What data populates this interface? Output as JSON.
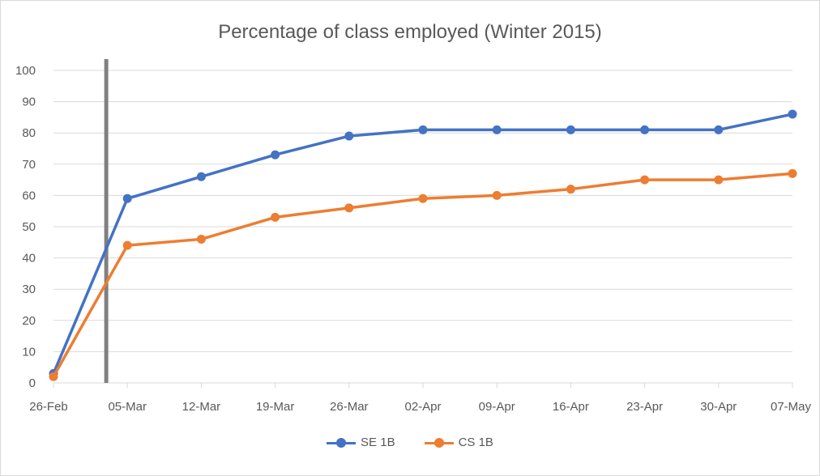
{
  "chart_data": {
    "type": "line",
    "title": "Percentage of class employed (Winter 2015)",
    "xlabel": "",
    "ylabel": "",
    "ylim": [
      0,
      100
    ],
    "yticks": [
      "0",
      "10",
      "20",
      "30",
      "40",
      "50",
      "60",
      "70",
      "80",
      "90",
      "100"
    ],
    "x": [
      "26-Feb",
      "05-Mar",
      "12-Mar",
      "19-Mar",
      "26-Mar",
      "02-Apr",
      "09-Apr",
      "16-Apr",
      "23-Apr",
      "30-Apr",
      "07-May"
    ],
    "marker_line_date": "03-Mar",
    "grid": true,
    "legend_position": "bottom",
    "series": [
      {
        "name": "SE 1B",
        "color": "#4472c4",
        "values": [
          3,
          59,
          66,
          73,
          79,
          81,
          81,
          81,
          81,
          81,
          86
        ]
      },
      {
        "name": "CS 1B",
        "color": "#ed7d31",
        "values": [
          2,
          44,
          46,
          53,
          56,
          59,
          60,
          62,
          65,
          65,
          67
        ]
      }
    ],
    "marker_line_color": "#808080",
    "grid_color": "#d9d9d9"
  }
}
